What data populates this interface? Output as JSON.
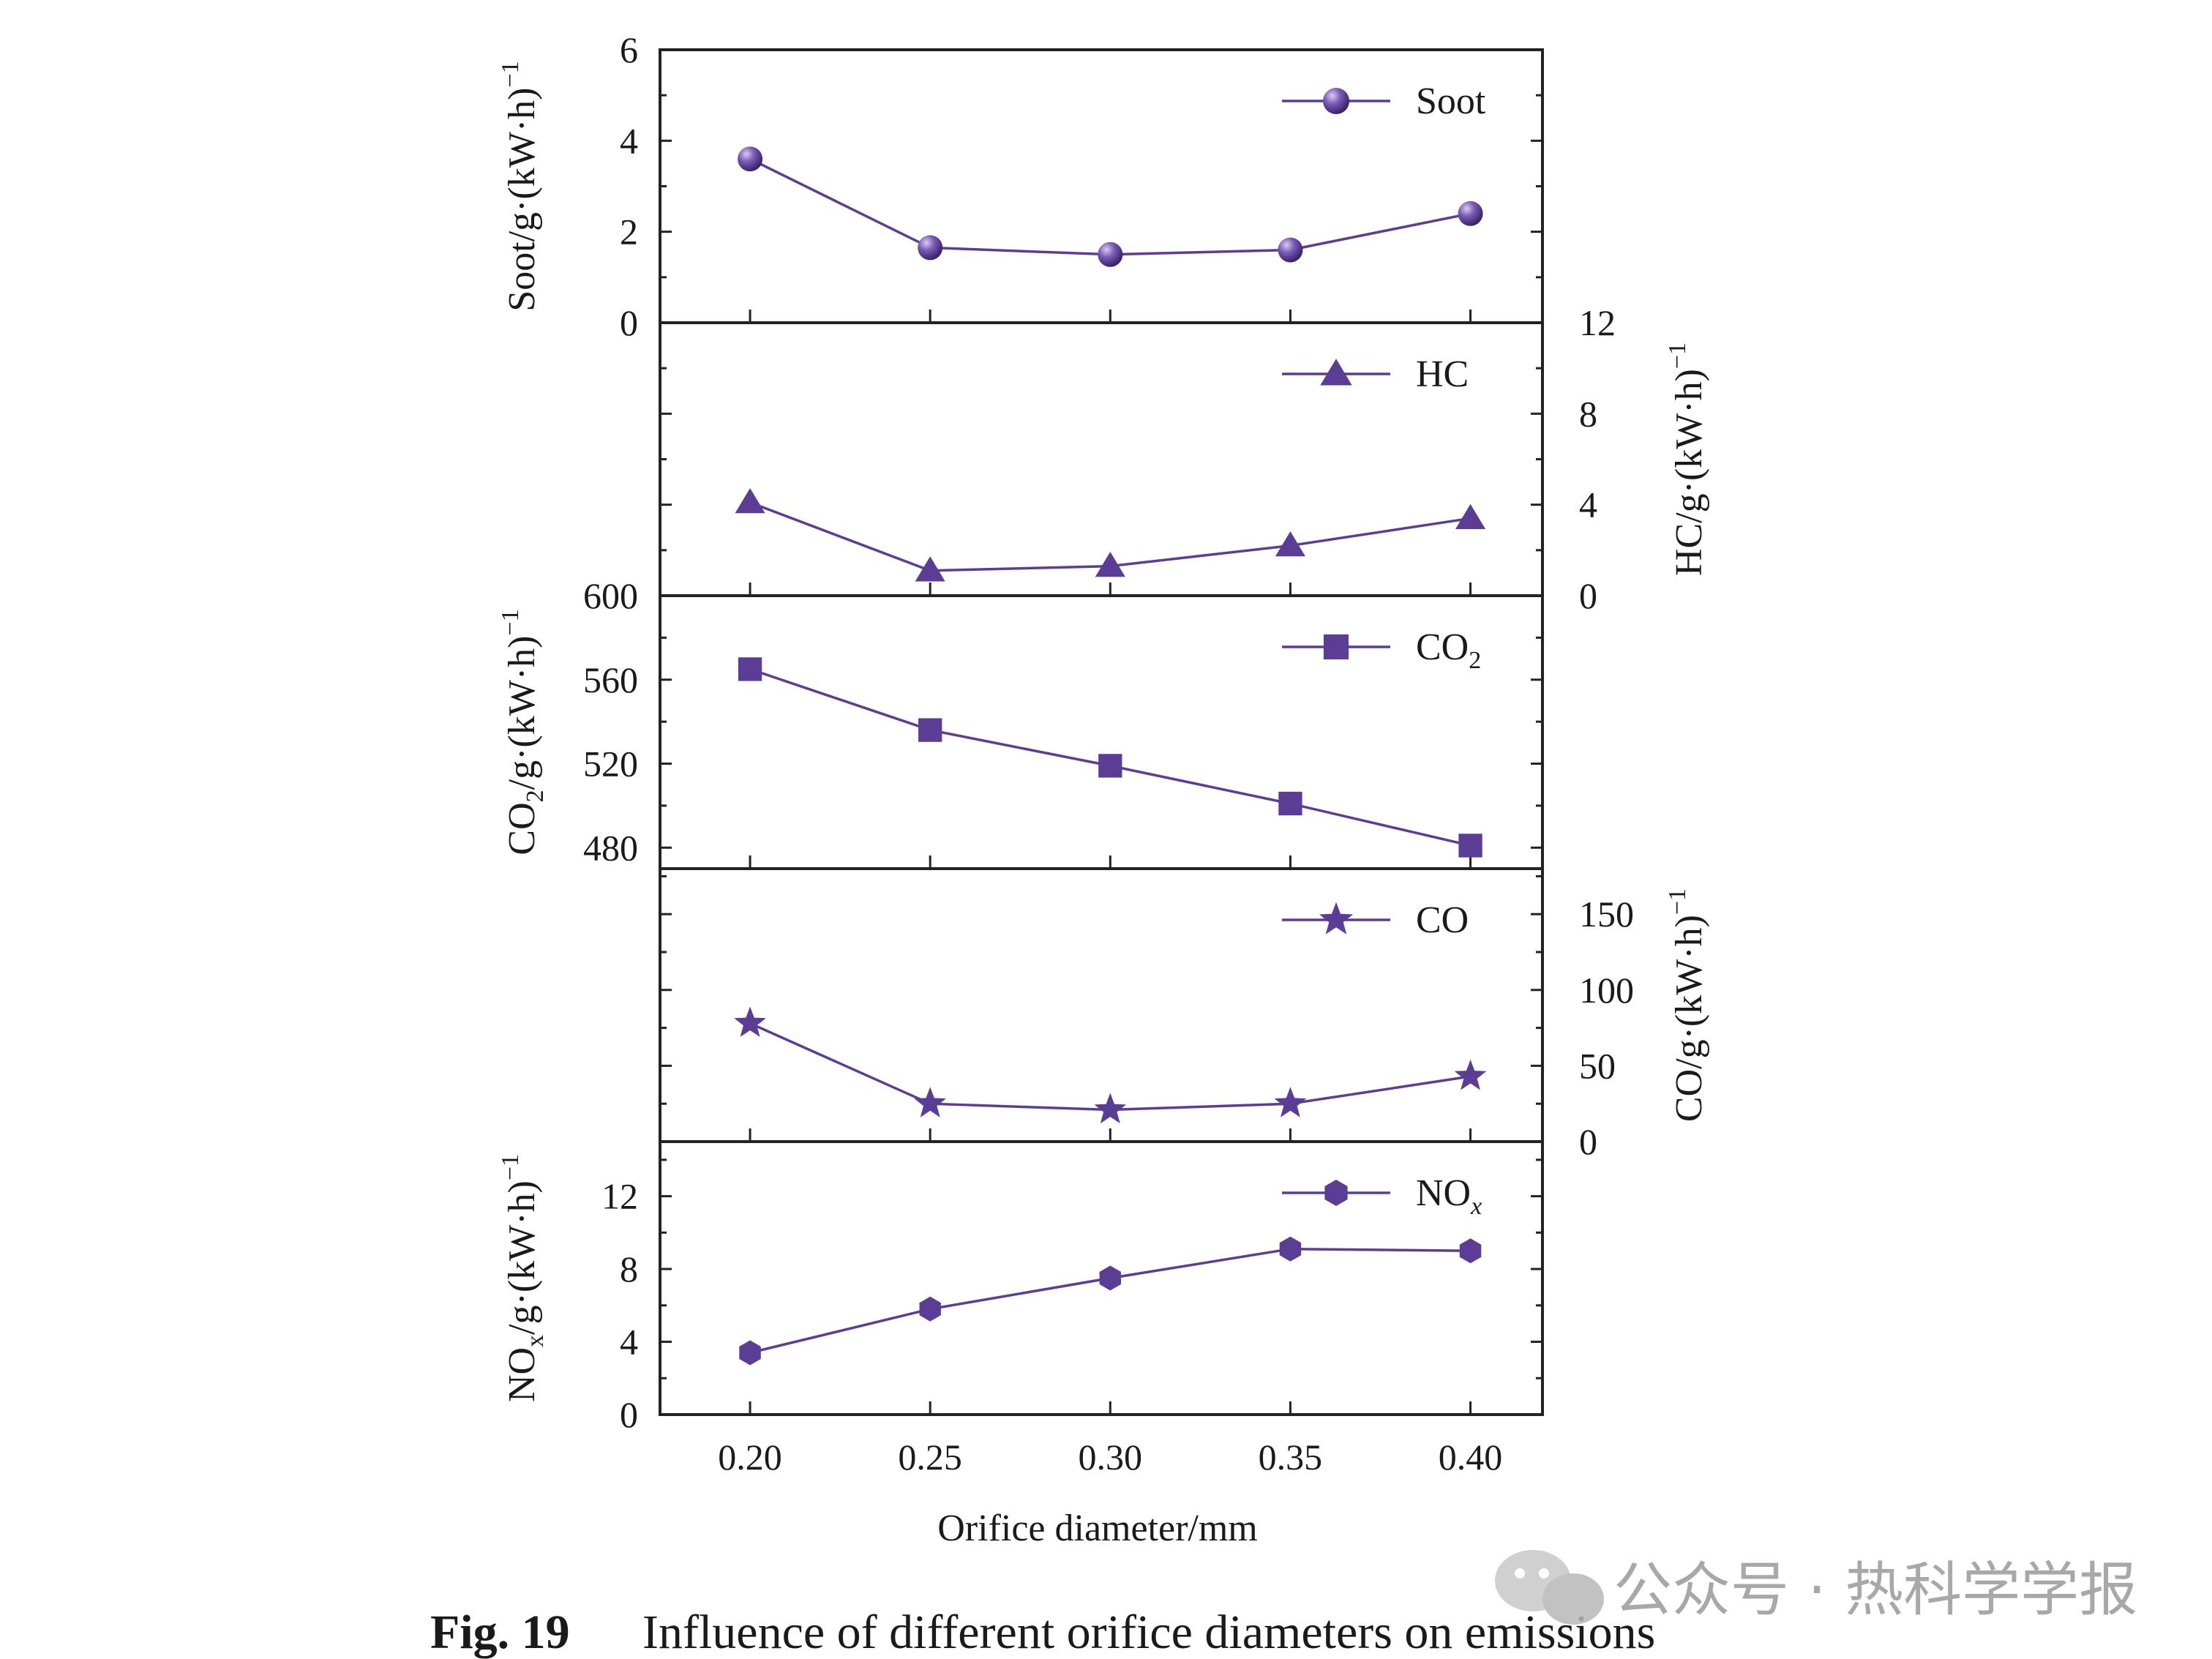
{
  "chart_data": {
    "type": "line",
    "x": [
      0.2,
      0.25,
      0.3,
      0.35,
      0.4
    ],
    "x_tick_labels": [
      "0.20",
      "0.25",
      "0.30",
      "0.35",
      "0.40"
    ],
    "xlabel": "Orifice diameter/mm",
    "line_color": "#5b3d96",
    "panels": [
      {
        "id": "soot",
        "series_name": "Soot",
        "name_sub": "",
        "marker": "sphere",
        "axis_side": "left",
        "ylabel": "Soot/g·(kW·h)",
        "ylabel_sub": "",
        "ylabel_after": "",
        "ylabel_sup": "−1",
        "ylim": [
          0,
          6
        ],
        "ticks": [
          0,
          2,
          4,
          6
        ],
        "values": [
          3.6,
          1.65,
          1.5,
          1.6,
          2.4
        ]
      },
      {
        "id": "hc",
        "series_name": "HC",
        "name_sub": "",
        "marker": "triangle",
        "axis_side": "right",
        "ylabel": "HC/g·(kW·h)",
        "ylabel_sub": "",
        "ylabel_after": "",
        "ylabel_sup": "−1",
        "ylim": [
          0,
          12
        ],
        "ticks": [
          0,
          4,
          8,
          12
        ],
        "values": [
          4.1,
          1.1,
          1.3,
          2.2,
          3.4
        ]
      },
      {
        "id": "co2",
        "series_name": "CO",
        "name_sub": "2",
        "marker": "square",
        "axis_side": "left",
        "ylabel": "CO",
        "ylabel_sub": "2",
        "ylabel_after": "/g·(kW·h)",
        "ylabel_sup": "−1",
        "ylim": [
          470,
          600
        ],
        "ticks": [
          480,
          520,
          560,
          600
        ],
        "values": [
          565,
          536,
          519,
          501,
          481
        ]
      },
      {
        "id": "co",
        "series_name": "CO",
        "name_sub": "",
        "marker": "star",
        "axis_side": "right",
        "ylabel": "CO/g·(kW·h)",
        "ylabel_sub": "",
        "ylabel_after": "",
        "ylabel_sup": "−1",
        "ylim": [
          0,
          180
        ],
        "ticks": [
          0,
          50,
          100,
          150
        ],
        "values": [
          78,
          25,
          21,
          25,
          43
        ]
      },
      {
        "id": "nox",
        "series_name": "NO",
        "name_sub": "x",
        "marker": "hexagon",
        "axis_side": "left",
        "ylabel": "NO",
        "ylabel_sub": "x",
        "ylabel_after": "/g·(kW·h)",
        "ylabel_sup": "−1",
        "ylim": [
          0,
          15
        ],
        "ticks": [
          0,
          4,
          8,
          12
        ],
        "values": [
          3.4,
          5.8,
          7.5,
          9.1,
          9.0
        ]
      }
    ]
  },
  "caption": {
    "label": "Fig. 19",
    "text": "Influence of different orifice diameters on emissions"
  },
  "watermark": {
    "text": "公众号 · 热科学学报",
    "icon": "wechat-icon"
  }
}
